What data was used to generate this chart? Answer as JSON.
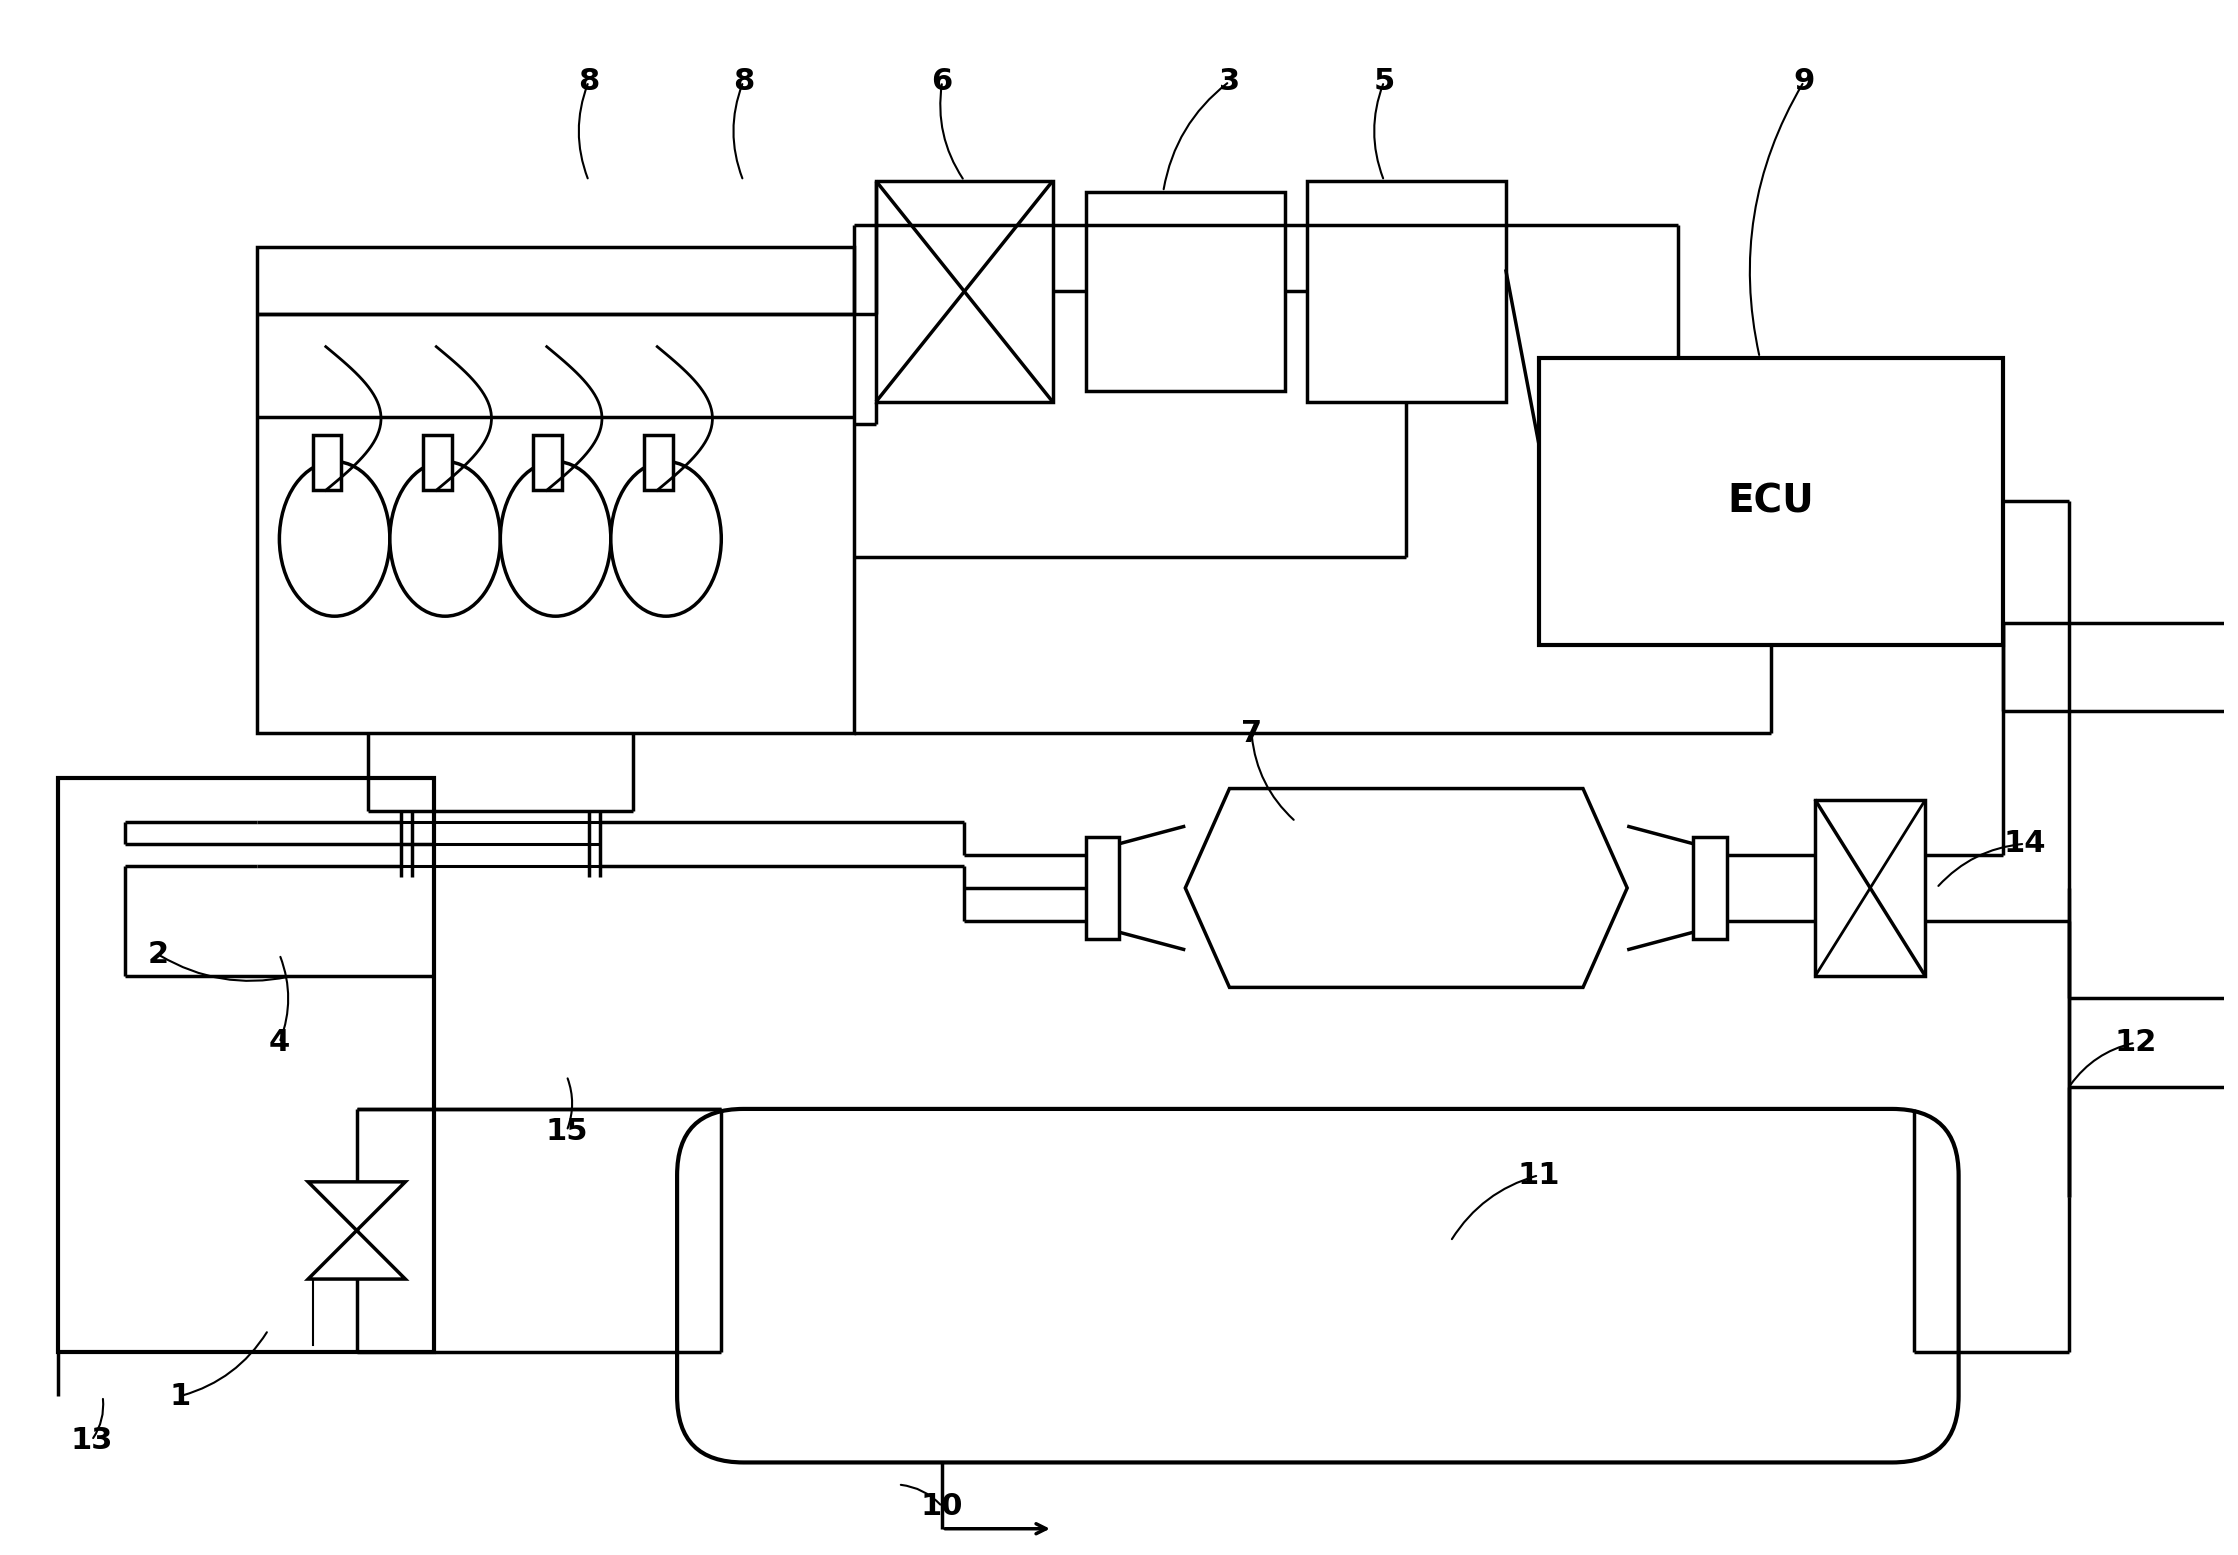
{
  "bg_color": "#ffffff",
  "lc": "#000000",
  "lw": 2.5,
  "fig_w": 22.38,
  "fig_h": 15.55,
  "ecu_label": "ECU",
  "label_fs": 22
}
